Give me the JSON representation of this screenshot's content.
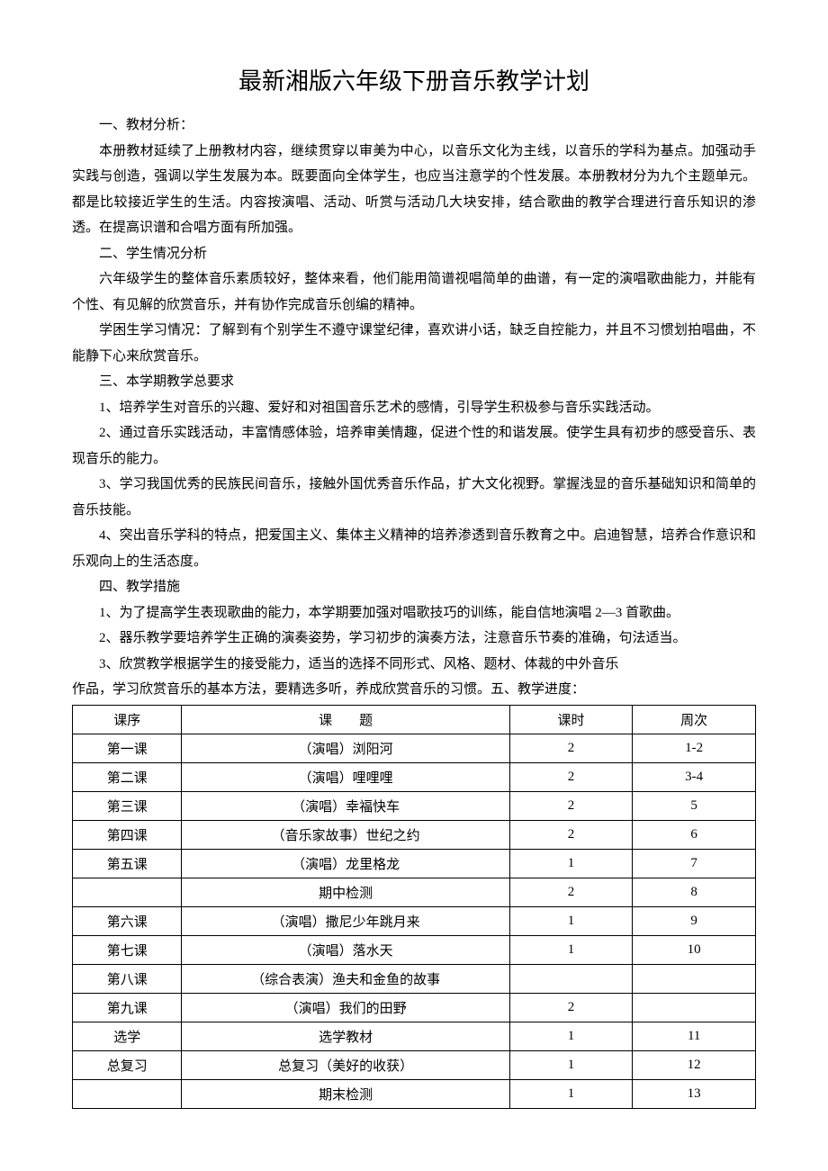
{
  "title": "最新湘版六年级下册音乐教学计划",
  "sections": {
    "s1_heading": "一、教材分析：",
    "s1_p1": "本册教材延续了上册教材内容，继续贯穿以审美为中心，以音乐文化为主线，以音乐的学科为基点。加强动手实践与创造，强调以学生发展为本。既要面向全体学生，也应当注意学的个性发展。本册教材分为九个主题单元。都是比较接近学生的生活。内容按演唱、活动、听赏与活动几大块安排，结合歌曲的教学合理进行音乐知识的渗透。在提高识谱和合唱方面有所加强。",
    "s2_heading": "二、学生情况分析",
    "s2_p1": "六年级学生的整体音乐素质较好，整体来看，他们能用简谱视唱简单的曲谱，有一定的演唱歌曲能力，并能有个性、有见解的欣赏音乐，并有协作完成音乐创编的精神。",
    "s2_p2": "学困生学习情况：了解到有个别学生不遵守课堂纪律，喜欢讲小话，缺乏自控能力，并且不习惯划拍唱曲，不能静下心来欣赏音乐。",
    "s3_heading": "三、本学期教学总要求",
    "s3_p1": "1、培养学生对音乐的兴趣、爱好和对祖国音乐艺术的感情，引导学生积极参与音乐实践活动。",
    "s3_p2": "2、通过音乐实践活动，丰富情感体验，培养审美情趣，促进个性的和谐发展。使学生具有初步的感受音乐、表现音乐的能力。",
    "s3_p3": "3、学习我国优秀的民族民间音乐，接触外国优秀音乐作品，扩大文化视野。掌握浅显的音乐基础知识和简单的音乐技能。",
    "s3_p4": "4、突出音乐学科的特点，把爱国主义、集体主义精神的培养渗透到音乐教育之中。启迪智慧，培养合作意识和乐观向上的生活态度。",
    "s4_heading": "四、教学措施",
    "s4_p1": "1、为了提高学生表现歌曲的能力，本学期要加强对唱歌技巧的训练，能自信地演唱 2—3 首歌曲。",
    "s4_p2": "2、器乐教学要培养学生正确的演奏姿势，学习初步的演奏方法，注意音乐节奏的准确，句法适当。",
    "s4_p3": "3、欣赏教学根据学生的接受能力，适当的选择不同形式、风格、题材、体裁的中外音乐",
    "s4_p4": "作品，学习欣赏音乐的基本方法，要精选多听，养成欣赏音乐的习惯。五、教学进度："
  },
  "table": {
    "headers": {
      "seq": "课序",
      "topic_a": "课",
      "topic_b": "题",
      "hours": "课时",
      "week": "周次"
    },
    "rows": [
      {
        "seq": "第一课",
        "topic": "（演唱）浏阳河",
        "hours": "2",
        "week": "1-2"
      },
      {
        "seq": "第二课",
        "topic": "（演唱）哩哩哩",
        "hours": "2",
        "week": "3-4"
      },
      {
        "seq": "第三课",
        "topic": "（演唱）幸福快车",
        "hours": "2",
        "week": "5"
      },
      {
        "seq": "第四课",
        "topic": "（音乐家故事）世纪之约",
        "hours": "2",
        "week": "6"
      },
      {
        "seq": "第五课",
        "topic": "（演唱）龙里格龙",
        "hours": "1",
        "week": "7"
      },
      {
        "seq": "",
        "topic": "期中检测",
        "hours": "2",
        "week": "8"
      },
      {
        "seq": "第六课",
        "topic": "（演唱）撒尼少年跳月来",
        "hours": "1",
        "week": "9"
      },
      {
        "seq": "第七课",
        "topic": "（演唱）落水天",
        "hours": "1",
        "week": "10"
      },
      {
        "seq": "第八课",
        "topic": "（综合表演）渔夫和金鱼的故事",
        "hours": "",
        "week": ""
      },
      {
        "seq": "第九课",
        "topic": "（演唱）我们的田野",
        "hours": "2",
        "week": ""
      },
      {
        "seq": "选学",
        "topic": "选学教材",
        "hours": "1",
        "week": "11"
      },
      {
        "seq": "总复习",
        "topic": "总复习（美好的收获）",
        "hours": "1",
        "week": "12"
      },
      {
        "seq": "",
        "topic": "期末检测",
        "hours": "1",
        "week": "13"
      }
    ]
  },
  "styling": {
    "background_color": "#ffffff",
    "text_color": "#000000",
    "border_color": "#000000",
    "title_fontsize": 26,
    "body_fontsize": 15,
    "line_height": 1.9,
    "font_family": "SimSun"
  }
}
